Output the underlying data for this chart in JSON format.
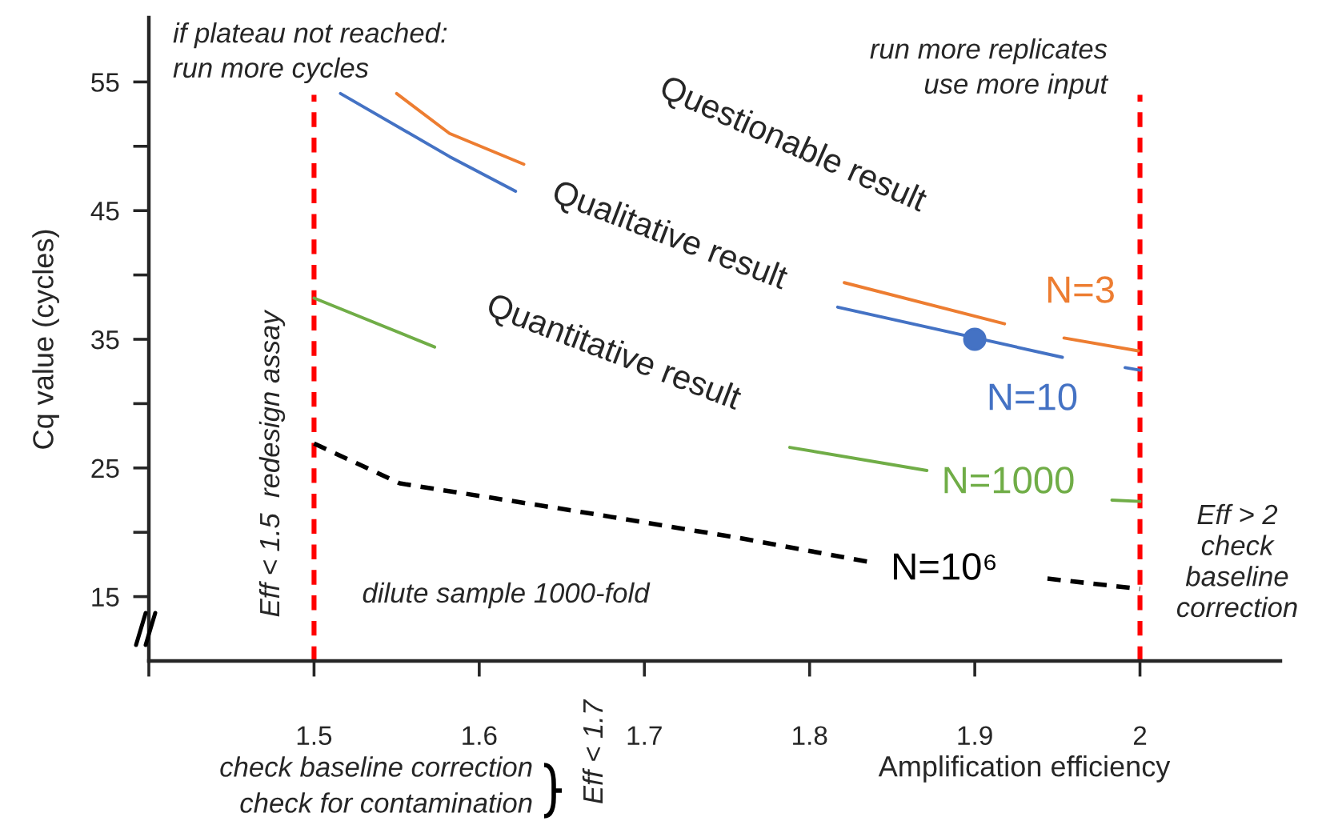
{
  "chart_data": {
    "type": "line",
    "xlabel": "Amplification efficiency",
    "ylabel": "Cq value (cycles)",
    "xlim": [
      1.4,
      2.085
    ],
    "ylim": [
      10,
      60
    ],
    "xticks": [
      {
        "value": 1.4,
        "label": null
      },
      1.5,
      1.6,
      1.7,
      1.8,
      1.9,
      2
    ],
    "yticks": [
      15,
      {
        "value": 20,
        "label": null
      },
      25,
      {
        "value": 30,
        "label": null
      },
      35,
      {
        "value": 40,
        "label": null
      },
      45,
      {
        "value": 50,
        "label": null
      },
      55
    ],
    "grid": false,
    "legend": false,
    "marker": "none",
    "series": [
      {
        "name": "N=3",
        "color": "#ed7d31",
        "line_style": "solid",
        "x": [
          1.55,
          1.582,
          1.627,
          1.7,
          1.821,
          1.918,
          1.93,
          1.954,
          1.999
        ],
        "values": [
          54.1,
          51.0,
          48.6,
          null,
          39.4,
          36.2,
          null,
          35.1,
          34.1
        ]
      },
      {
        "name": "N=10",
        "color": "#4472c4",
        "line_style": "solid",
        "x": [
          1.516,
          1.582,
          1.622,
          1.7,
          1.817,
          1.953,
          1.97,
          1.991,
          2.0
        ],
        "values": [
          54.1,
          49.2,
          46.5,
          null,
          37.5,
          33.6,
          null,
          32.8,
          32.6
        ]
      },
      {
        "name": "N=1000",
        "color": "#70ad47",
        "line_style": "solid",
        "x": [
          1.5,
          1.573,
          1.7,
          1.788,
          1.871,
          1.93,
          1.983,
          2.0
        ],
        "values": [
          38.2,
          34.4,
          null,
          26.6,
          24.8,
          null,
          22.5,
          22.4
        ]
      },
      {
        "name": "N=10⁶",
        "color": "#000000",
        "line_style": "dashed",
        "x": [
          1.5,
          1.552,
          1.656,
          1.76,
          1.84,
          1.9,
          1.944,
          2.0
        ],
        "values": [
          26.9,
          23.8,
          21.7,
          19.5,
          17.6,
          null,
          16.4,
          15.6
        ]
      },
      {
        "type": "scatter",
        "marker": "circle",
        "color": "#4472c4",
        "x": [
          1.9
        ],
        "values": [
          35
        ]
      }
    ],
    "ref_lines": [
      {
        "axis": "x",
        "value": 1.5,
        "color": "#ff0000",
        "line_style": "dashed"
      },
      {
        "axis": "x",
        "value": 2,
        "color": "#ff0000",
        "line_style": "dashed"
      }
    ],
    "annotations": [
      "if plateau not reached:\nrun more cycles",
      "run more replicates\nuse more input",
      "Questionable result",
      "Qualitative result",
      "Quantitative result",
      "Eff < 1.5  redesign assay",
      "dilute sample 1000-fold",
      "Eff > 2\ncheck\nbaseline\ncorrection",
      "check baseline correction\ncheck for contamination",
      "Eff < 1.7"
    ]
  }
}
